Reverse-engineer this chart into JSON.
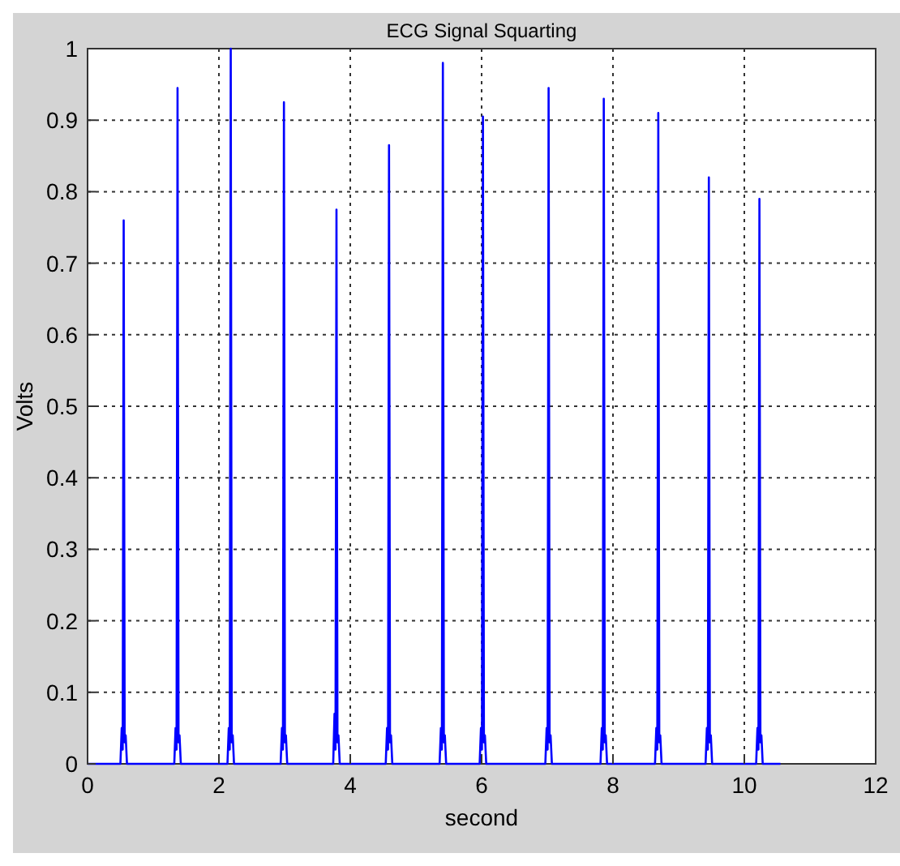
{
  "chart_data": {
    "type": "line",
    "title": "ECG Signal Squarting",
    "xlabel": "second",
    "ylabel": "Volts",
    "xlim": [
      0,
      12
    ],
    "xticks": [
      0,
      2,
      4,
      6,
      8,
      10,
      12
    ],
    "ylim": [
      0,
      1
    ],
    "yticks": [
      0,
      0.1,
      0.2,
      0.3,
      0.4,
      0.5,
      0.6,
      0.7,
      0.8,
      0.9,
      1
    ],
    "grid": true,
    "line_style": "solid",
    "series": [
      {
        "color": "#0000ff",
        "x": [
          0,
          0.5,
          0.52,
          0.535,
          0.55,
          0.565,
          0.58,
          0.6,
          1.32,
          1.34,
          1.355,
          1.37,
          1.385,
          1.4,
          1.42,
          2.13,
          2.15,
          2.165,
          2.18,
          2.195,
          2.21,
          2.23,
          2.94,
          2.96,
          2.975,
          2.99,
          3.005,
          3.02,
          3.04,
          3.74,
          3.76,
          3.775,
          3.79,
          3.805,
          3.82,
          3.84,
          4.54,
          4.56,
          4.575,
          4.59,
          4.605,
          4.62,
          4.64,
          5.36,
          5.38,
          5.395,
          5.41,
          5.425,
          5.44,
          5.46,
          5.97,
          5.99,
          6.005,
          6.02,
          6.035,
          6.05,
          6.07,
          6.97,
          6.99,
          7.005,
          7.02,
          7.035,
          7.05,
          7.07,
          7.81,
          7.83,
          7.845,
          7.86,
          7.875,
          7.89,
          7.91,
          8.64,
          8.66,
          8.675,
          8.69,
          8.705,
          8.72,
          8.74,
          9.41,
          9.43,
          9.445,
          9.46,
          9.475,
          9.49,
          9.51,
          10.18,
          10.2,
          10.215,
          10.23,
          10.245,
          10.26,
          10.28,
          10.55
        ],
        "values": [
          0,
          0,
          0.05,
          0.02,
          0.76,
          0.03,
          0.04,
          0,
          0,
          0.05,
          0.02,
          0.945,
          0.03,
          0.04,
          0,
          0,
          0.05,
          0.02,
          1.0,
          0.03,
          0.04,
          0,
          0,
          0.05,
          0.02,
          0.925,
          0.03,
          0.04,
          0,
          0,
          0.07,
          0.02,
          0.775,
          0.03,
          0.04,
          0,
          0,
          0.05,
          0.02,
          0.865,
          0.03,
          0.04,
          0,
          0,
          0.05,
          0.02,
          0.98,
          0.03,
          0.04,
          0,
          0,
          0.05,
          0.02,
          0.905,
          0.03,
          0.04,
          0,
          0,
          0.05,
          0.02,
          0.945,
          0.03,
          0.04,
          0,
          0,
          0.05,
          0.02,
          0.93,
          0.03,
          0.04,
          0,
          0,
          0.05,
          0.02,
          0.91,
          0.03,
          0.04,
          0,
          0,
          0.05,
          0.02,
          0.82,
          0.03,
          0.04,
          0,
          0,
          0.05,
          0.02,
          0.79,
          0.03,
          0.04,
          0,
          0
        ]
      }
    ]
  }
}
